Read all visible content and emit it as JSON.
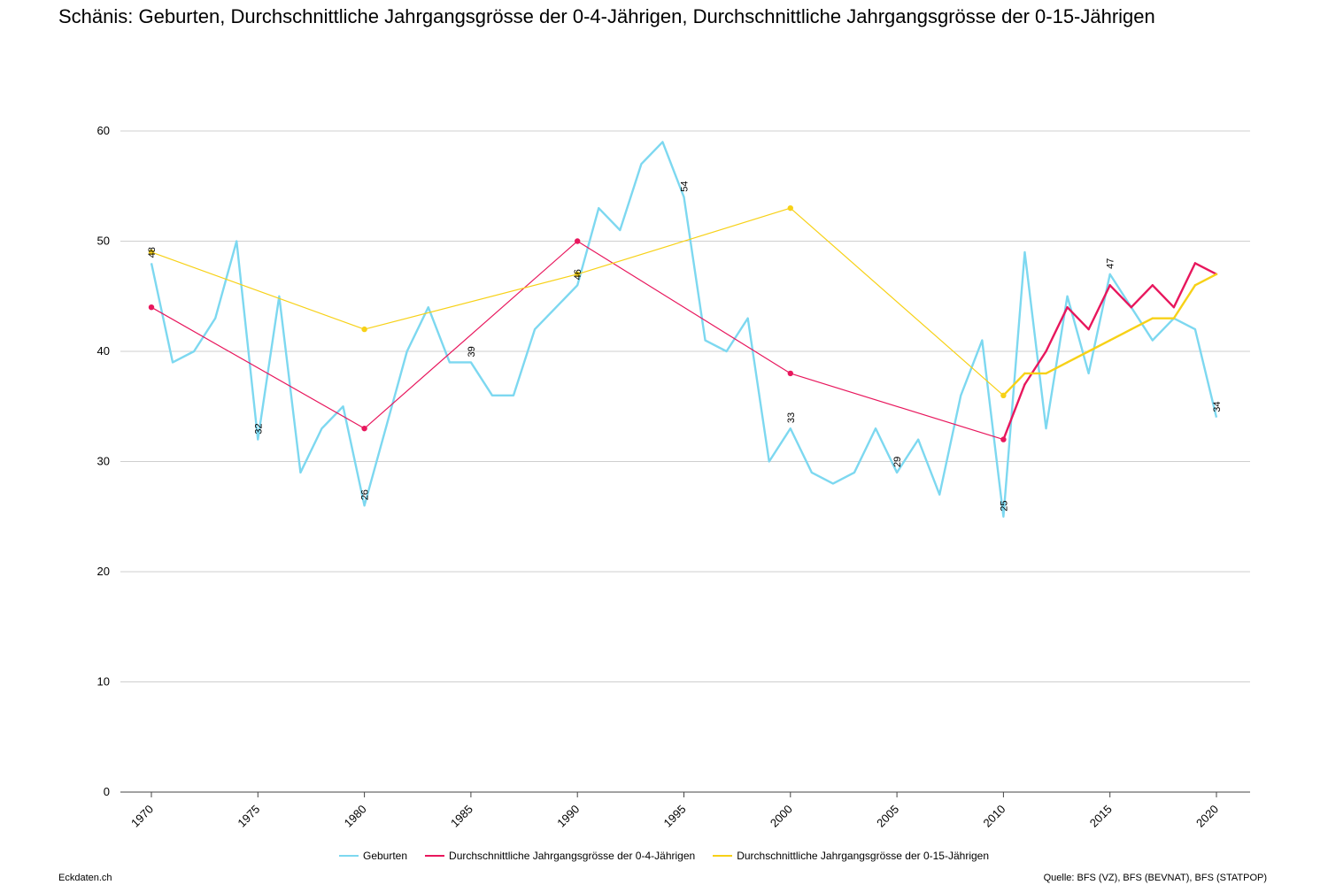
{
  "title": "Schänis: Geburten, Durchschnittliche Jahrgangsgrösse der 0-4-Jährigen, Durchschnittliche Jahrgangsgrösse der 0-15-Jährigen",
  "footer": {
    "site": "Eckdaten.ch",
    "source": "Quelle: BFS (VZ), BFS (BEVNAT), BFS (STATPOP)"
  },
  "chart_data": {
    "type": "line",
    "xlim": [
      1970,
      2020
    ],
    "ylim": [
      0,
      60
    ],
    "x_ticks": [
      1970,
      1975,
      1980,
      1985,
      1990,
      1995,
      2000,
      2005,
      2010,
      2015,
      2020
    ],
    "y_ticks": [
      0,
      10,
      20,
      30,
      40,
      50,
      60
    ],
    "grid": "horizontal",
    "legend_position": "bottom",
    "series": [
      {
        "name": "Geburten",
        "color": "#7dd8f0",
        "x": [
          1970,
          1971,
          1972,
          1973,
          1974,
          1975,
          1976,
          1977,
          1978,
          1979,
          1980,
          1981,
          1982,
          1983,
          1984,
          1985,
          1986,
          1987,
          1988,
          1989,
          1990,
          1991,
          1992,
          1993,
          1994,
          1995,
          1996,
          1997,
          1998,
          1999,
          2000,
          2001,
          2002,
          2003,
          2004,
          2005,
          2006,
          2007,
          2008,
          2009,
          2010,
          2011,
          2012,
          2013,
          2014,
          2015,
          2016,
          2017,
          2018,
          2019,
          2020
        ],
        "y": [
          48,
          39,
          40,
          43,
          50,
          32,
          45,
          29,
          33,
          35,
          26,
          33,
          40,
          44,
          39,
          39,
          36,
          36,
          42,
          44,
          46,
          53,
          51,
          57,
          59,
          54,
          41,
          40,
          43,
          30,
          33,
          29,
          28,
          29,
          33,
          29,
          32,
          27,
          36,
          41,
          25,
          49,
          33,
          45,
          38,
          47,
          44,
          41,
          43,
          42,
          34
        ],
        "labels": [
          {
            "x": 1970,
            "y": 48,
            "text": "48"
          },
          {
            "x": 1975,
            "y": 32,
            "text": "32"
          },
          {
            "x": 1980,
            "y": 26,
            "text": "26"
          },
          {
            "x": 1985,
            "y": 39,
            "text": "39"
          },
          {
            "x": 1990,
            "y": 46,
            "text": "46"
          },
          {
            "x": 1995,
            "y": 54,
            "text": "54"
          },
          {
            "x": 2000,
            "y": 33,
            "text": "33"
          },
          {
            "x": 2005,
            "y": 29,
            "text": "29"
          },
          {
            "x": 2010,
            "y": 25,
            "text": "25"
          },
          {
            "x": 2015,
            "y": 47,
            "text": "47"
          },
          {
            "x": 2020,
            "y": 34,
            "text": "34"
          }
        ]
      },
      {
        "name": "Durchschnittliche Jahrgangsgrösse der 0-4-Jährigen",
        "color": "#e8175d",
        "x": [
          1970,
          1980,
          1990,
          2000,
          2010,
          2011,
          2012,
          2013,
          2014,
          2015,
          2016,
          2017,
          2018,
          2019,
          2020
        ],
        "y": [
          44,
          33,
          50,
          38,
          32,
          37,
          40,
          44,
          42,
          46,
          44,
          46,
          44,
          48,
          47
        ],
        "markers_at": [
          1970,
          1980,
          1990,
          2000,
          2010
        ]
      },
      {
        "name": "Durchschnittliche Jahrgangsgrösse der 0-15-Jährigen",
        "color": "#f7d117",
        "x": [
          1970,
          1980,
          1990,
          2000,
          2010,
          2011,
          2012,
          2013,
          2014,
          2015,
          2016,
          2017,
          2018,
          2019,
          2020
        ],
        "y": [
          49,
          42,
          47,
          53,
          36,
          38,
          38,
          39,
          40,
          41,
          42,
          43,
          43,
          46,
          47
        ],
        "markers_at": [
          1970,
          1980,
          1990,
          2000,
          2010
        ]
      }
    ]
  }
}
